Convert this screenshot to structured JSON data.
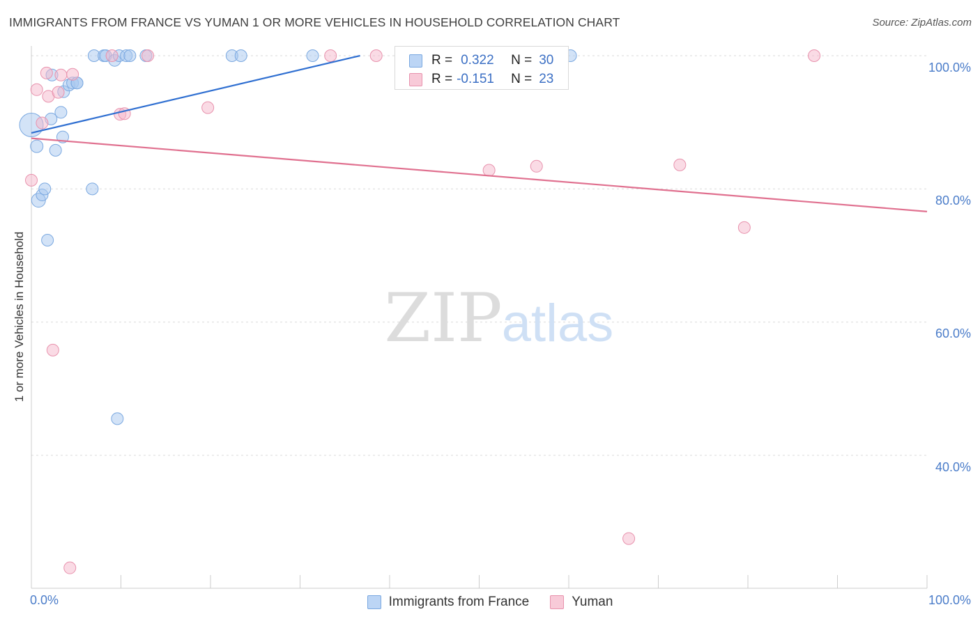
{
  "title": "IMMIGRANTS FROM FRANCE VS YUMAN 1 OR MORE VEHICLES IN HOUSEHOLD CORRELATION CHART",
  "source": "Source: ZipAtlas.com",
  "watermark": {
    "zip": "ZIP",
    "atlas": "atlas"
  },
  "colors": {
    "blue_point": "#a8c8f0",
    "blue_stroke": "#7aa8e0",
    "blue_line": "#2f6fd1",
    "pink_point": "#f5b8cb",
    "pink_stroke": "#e892ad",
    "pink_line": "#e0708f",
    "tick_text": "#4a7cc9",
    "grid": "#d9d9d9"
  },
  "stats": [
    {
      "r_label": "R =",
      "r_value": "0.322",
      "n_label": "N =",
      "n_value": "30",
      "series": "blue"
    },
    {
      "r_label": "R =",
      "r_value": "-0.151",
      "n_label": "N =",
      "n_value": "23",
      "series": "pink"
    }
  ],
  "legend": [
    {
      "label": "Immigrants from France",
      "series": "blue"
    },
    {
      "label": "Yuman",
      "series": "pink"
    }
  ],
  "chart_data": {
    "type": "scatter",
    "title": "IMMIGRANTS FROM FRANCE VS YUMAN 1 OR MORE VEHICLES IN HOUSEHOLD CORRELATION CHART",
    "xlabel": "",
    "ylabel": "1 or more Vehicles in Household",
    "xlim": [
      0,
      100
    ],
    "ylim": [
      20,
      103
    ],
    "x_tick_labels": [
      "0.0%",
      "100.0%"
    ],
    "y_ticks": [
      40,
      60,
      80,
      100
    ],
    "y_tick_labels": [
      "40.0%",
      "60.0%",
      "80.0%",
      "100.0%"
    ],
    "grid": true,
    "series": [
      {
        "name": "Immigrants from France",
        "color": "blue",
        "trend": {
          "x": [
            0,
            36.7
          ],
          "y": [
            88.4,
            100.0
          ]
        },
        "points": [
          {
            "x": 0.0,
            "y": 89.6,
            "size": 34
          },
          {
            "x": 0.6,
            "y": 86.4,
            "size": 18
          },
          {
            "x": 0.8,
            "y": 78.3,
            "size": 20
          },
          {
            "x": 1.2,
            "y": 79.1,
            "size": 17
          },
          {
            "x": 1.5,
            "y": 80.0,
            "size": 17
          },
          {
            "x": 1.8,
            "y": 72.3,
            "size": 17
          },
          {
            "x": 2.2,
            "y": 90.5,
            "size": 17
          },
          {
            "x": 2.3,
            "y": 97.1,
            "size": 17
          },
          {
            "x": 2.7,
            "y": 85.8,
            "size": 17
          },
          {
            "x": 3.3,
            "y": 91.5,
            "size": 17
          },
          {
            "x": 3.5,
            "y": 87.8,
            "size": 17
          },
          {
            "x": 3.6,
            "y": 94.6,
            "size": 17
          },
          {
            "x": 4.2,
            "y": 95.6,
            "size": 17
          },
          {
            "x": 4.6,
            "y": 95.9,
            "size": 17
          },
          {
            "x": 5.1,
            "y": 95.9,
            "size": 17
          },
          {
            "x": 5.1,
            "y": 95.9,
            "size": 17
          },
          {
            "x": 6.8,
            "y": 80.0,
            "size": 17
          },
          {
            "x": 7.0,
            "y": 100.0,
            "size": 17
          },
          {
            "x": 8.1,
            "y": 100.0,
            "size": 17
          },
          {
            "x": 8.3,
            "y": 100.0,
            "size": 17
          },
          {
            "x": 9.3,
            "y": 99.3,
            "size": 17
          },
          {
            "x": 9.6,
            "y": 45.5,
            "size": 17
          },
          {
            "x": 9.8,
            "y": 100.0,
            "size": 17
          },
          {
            "x": 10.6,
            "y": 100.0,
            "size": 17
          },
          {
            "x": 11.0,
            "y": 100.0,
            "size": 17
          },
          {
            "x": 12.8,
            "y": 100.0,
            "size": 17
          },
          {
            "x": 22.4,
            "y": 100.0,
            "size": 17
          },
          {
            "x": 23.4,
            "y": 100.0,
            "size": 17
          },
          {
            "x": 31.4,
            "y": 100.0,
            "size": 17
          },
          {
            "x": 60.2,
            "y": 100.0,
            "size": 17
          }
        ]
      },
      {
        "name": "Yuman",
        "color": "pink",
        "trend": {
          "x": [
            0,
            100
          ],
          "y": [
            87.6,
            76.6
          ]
        },
        "points": [
          {
            "x": 0.0,
            "y": 81.3,
            "size": 17
          },
          {
            "x": 0.6,
            "y": 94.9,
            "size": 17
          },
          {
            "x": 1.2,
            "y": 89.9,
            "size": 17
          },
          {
            "x": 1.7,
            "y": 97.4,
            "size": 17
          },
          {
            "x": 1.9,
            "y": 93.9,
            "size": 17
          },
          {
            "x": 2.4,
            "y": 55.8,
            "size": 17
          },
          {
            "x": 3.0,
            "y": 94.5,
            "size": 17
          },
          {
            "x": 3.3,
            "y": 97.1,
            "size": 17
          },
          {
            "x": 4.3,
            "y": 23.1,
            "size": 17
          },
          {
            "x": 4.6,
            "y": 97.2,
            "size": 17
          },
          {
            "x": 9.0,
            "y": 100.0,
            "size": 17
          },
          {
            "x": 9.9,
            "y": 91.2,
            "size": 17
          },
          {
            "x": 10.4,
            "y": 91.3,
            "size": 17
          },
          {
            "x": 13.0,
            "y": 100.0,
            "size": 17
          },
          {
            "x": 19.7,
            "y": 92.2,
            "size": 17
          },
          {
            "x": 33.4,
            "y": 100.0,
            "size": 17
          },
          {
            "x": 38.5,
            "y": 100.0,
            "size": 17
          },
          {
            "x": 51.1,
            "y": 82.8,
            "size": 17
          },
          {
            "x": 56.4,
            "y": 83.4,
            "size": 17
          },
          {
            "x": 66.7,
            "y": 27.5,
            "size": 17
          },
          {
            "x": 72.4,
            "y": 83.6,
            "size": 17
          },
          {
            "x": 79.6,
            "y": 74.2,
            "size": 17
          },
          {
            "x": 87.4,
            "y": 100.0,
            "size": 17
          }
        ]
      }
    ]
  }
}
